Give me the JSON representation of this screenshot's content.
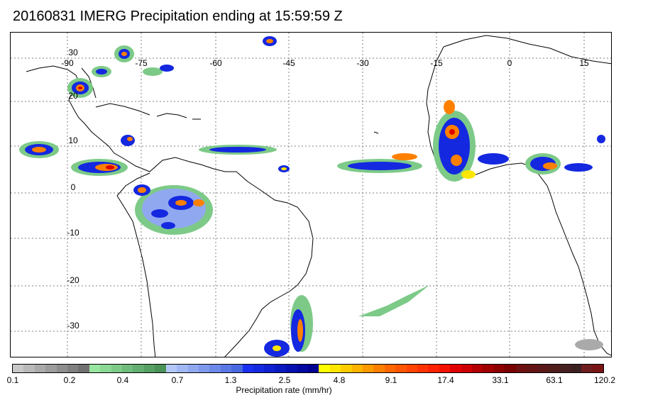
{
  "title": "20160831 IMERG Precipitation ending at 15:59:59 Z",
  "map": {
    "lon_labels": [
      "-90",
      "-75",
      "-60",
      "-45",
      "-30",
      "-15",
      "0",
      "15"
    ],
    "lat_labels": [
      "30",
      "20",
      "10",
      "0",
      "-10",
      "-20",
      "-30"
    ],
    "gridlines": true,
    "land_outline_color": "#000000",
    "background_color": "#ffffff"
  },
  "colorbar": {
    "title": "Precipitation rate (mm/hr)",
    "tick_labels": [
      "0.1",
      "0.2",
      "0.4",
      "0.7",
      "1.3",
      "2.5",
      "4.8",
      "9.1",
      "17.4",
      "33.1",
      "63.1",
      "120.2"
    ],
    "colors": [
      "#c8c8c8",
      "#b9b9b9",
      "#aaaaaa",
      "#9c9c9c",
      "#8d8d8d",
      "#7f7f7f",
      "#717171",
      "#97e6a0",
      "#8ad894",
      "#7dca88",
      "#70bc7c",
      "#63ae70",
      "#56a064",
      "#4a9258",
      "#b4c8f8",
      "#a2b8f4",
      "#90a8f0",
      "#7e98ec",
      "#6c88e8",
      "#5a78e4",
      "#4868e0",
      "#1a30f0",
      "#1428e0",
      "#0f20d0",
      "#0a18c0",
      "#0610b0",
      "#0308a0",
      "#000090",
      "#ffff00",
      "#ffe600",
      "#ffcc00",
      "#ffb300",
      "#ff9900",
      "#ff8000",
      "#ff6600",
      "#ff5500",
      "#ff4400",
      "#ff3300",
      "#ff2200",
      "#f51100",
      "#e00000",
      "#cc0000",
      "#b30000",
      "#a00000",
      "#8c0000",
      "#780000",
      "#6e1010",
      "#641414",
      "#5a1818",
      "#501c1c",
      "#462020",
      "#3c2020",
      "#6e1e1e",
      "#7a1414"
    ]
  },
  "precip_colors": {
    "gray": "#aaaaaa",
    "green": "#7dca88",
    "light_blue": "#90a8f0",
    "blue": "#1428e0",
    "yellow": "#ffe600",
    "orange": "#ff8000",
    "red": "#e00000"
  }
}
